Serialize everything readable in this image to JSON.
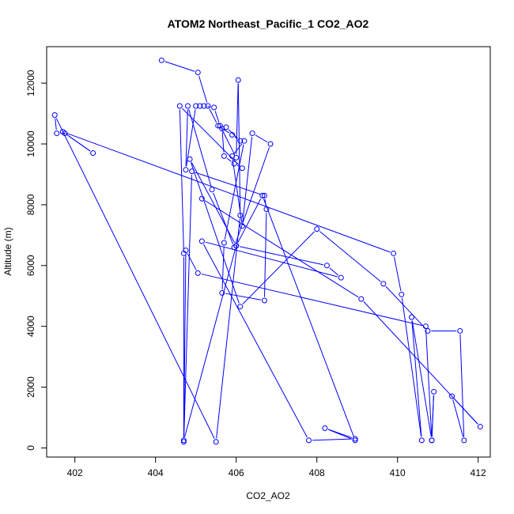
{
  "chart_data": {
    "type": "line",
    "title": "ATOM2 Northeast_Pacific_1 CO2_AO2",
    "xlabel": "CO2_AO2",
    "ylabel": "Altitude (m)",
    "xlim": [
      401.3,
      412.3
    ],
    "ylim": [
      -300,
      13200
    ],
    "xticks": [
      402,
      404,
      406,
      408,
      410,
      412
    ],
    "yticks": [
      0,
      2000,
      4000,
      6000,
      8000,
      10000,
      12000
    ],
    "grid": false,
    "color": "#0000ff",
    "x": [
      404.15,
      405.05,
      405.3,
      405.55,
      405.9,
      406.1,
      405.75,
      405.65,
      405.7,
      405.95,
      406.15,
      404.6,
      404.7,
      404.7,
      404.9,
      406.7,
      406.75,
      406.7,
      405.65,
      405.7,
      406.2,
      405.9,
      406.15,
      406.4,
      406.85,
      405.95,
      405.4,
      404.8,
      404.75,
      405.0,
      405.1,
      405.2,
      405.45,
      405.6,
      406.0,
      406.05,
      406.1,
      405.5,
      401.5,
      401.55,
      401.75,
      402.45,
      401.7,
      409.9,
      410.1,
      410.6,
      410.35,
      410.85,
      410.9,
      410.85,
      410.7,
      405.05,
      404.75,
      404.7,
      406.0,
      406.65,
      408.95,
      408.2,
      408.95,
      407.8,
      405.15,
      408.6,
      408.25,
      406.0,
      404.85,
      406.1,
      408.0,
      409.65,
      410.75,
      411.55,
      411.65,
      411.35,
      412.05,
      409.1,
      405.15
    ],
    "y": [
      12750,
      12350,
      11250,
      10600,
      10300,
      10100,
      10550,
      10500,
      9600,
      9350,
      9200,
      11250,
      6400,
      200,
      9100,
      8300,
      7850,
      4850,
      5100,
      6750,
      10100,
      9600,
      7300,
      10350,
      10000,
      6600,
      8500,
      11250,
      9150,
      11250,
      11250,
      11250,
      11200,
      10600,
      9550,
      12100,
      7650,
      200,
      10950,
      10350,
      10350,
      9700,
      10400,
      6400,
      5050,
      250,
      4300,
      250,
      1850,
      250,
      4000,
      5750,
      6500,
      250,
      6650,
      8300,
      250,
      650,
      300,
      250,
      6800,
      5600,
      6000,
      6650,
      9500,
      4650,
      7200,
      5400,
      3850,
      3850,
      250,
      1700,
      700,
      4900,
      8200
    ]
  }
}
